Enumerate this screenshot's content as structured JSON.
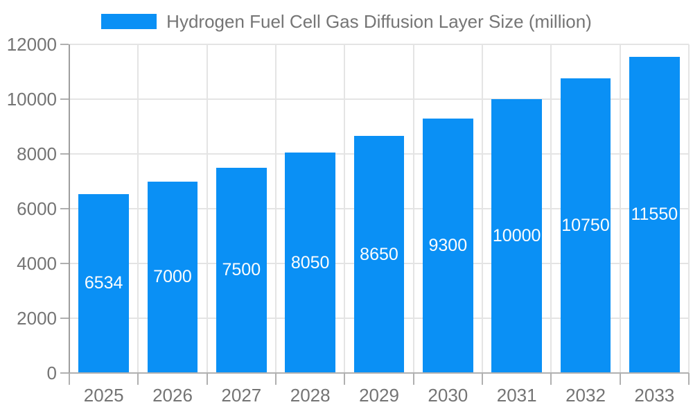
{
  "chart_data": {
    "type": "bar",
    "title": "Hydrogen Fuel Cell Gas Diffusion Layer Size (million)",
    "categories": [
      "2025",
      "2026",
      "2027",
      "2028",
      "2029",
      "2030",
      "2031",
      "2032",
      "2033"
    ],
    "values": [
      6534,
      7000,
      7500,
      8050,
      8650,
      9300,
      10000,
      10750,
      11550
    ],
    "xlabel": "",
    "ylabel": "",
    "ylim": [
      0,
      12000
    ],
    "yticks": [
      0,
      2000,
      4000,
      6000,
      8000,
      10000,
      12000
    ],
    "grid": "on",
    "legend_position": "top-center",
    "bar_labels": "inside-centered-white"
  },
  "legend": {
    "label": "Hydrogen Fuel Cell Gas Diffusion Layer Size (million)"
  },
  "colors": {
    "bar": "#0a90f5",
    "bar_label_text": "#fdfdfd",
    "grid": "#e4e4e4",
    "y_axis_line": "#9e9e9e",
    "x_axis_line": "#b0b0b0",
    "tick": "#b0b0b0",
    "axis_text": "#747474",
    "legend_text": "#757575"
  }
}
